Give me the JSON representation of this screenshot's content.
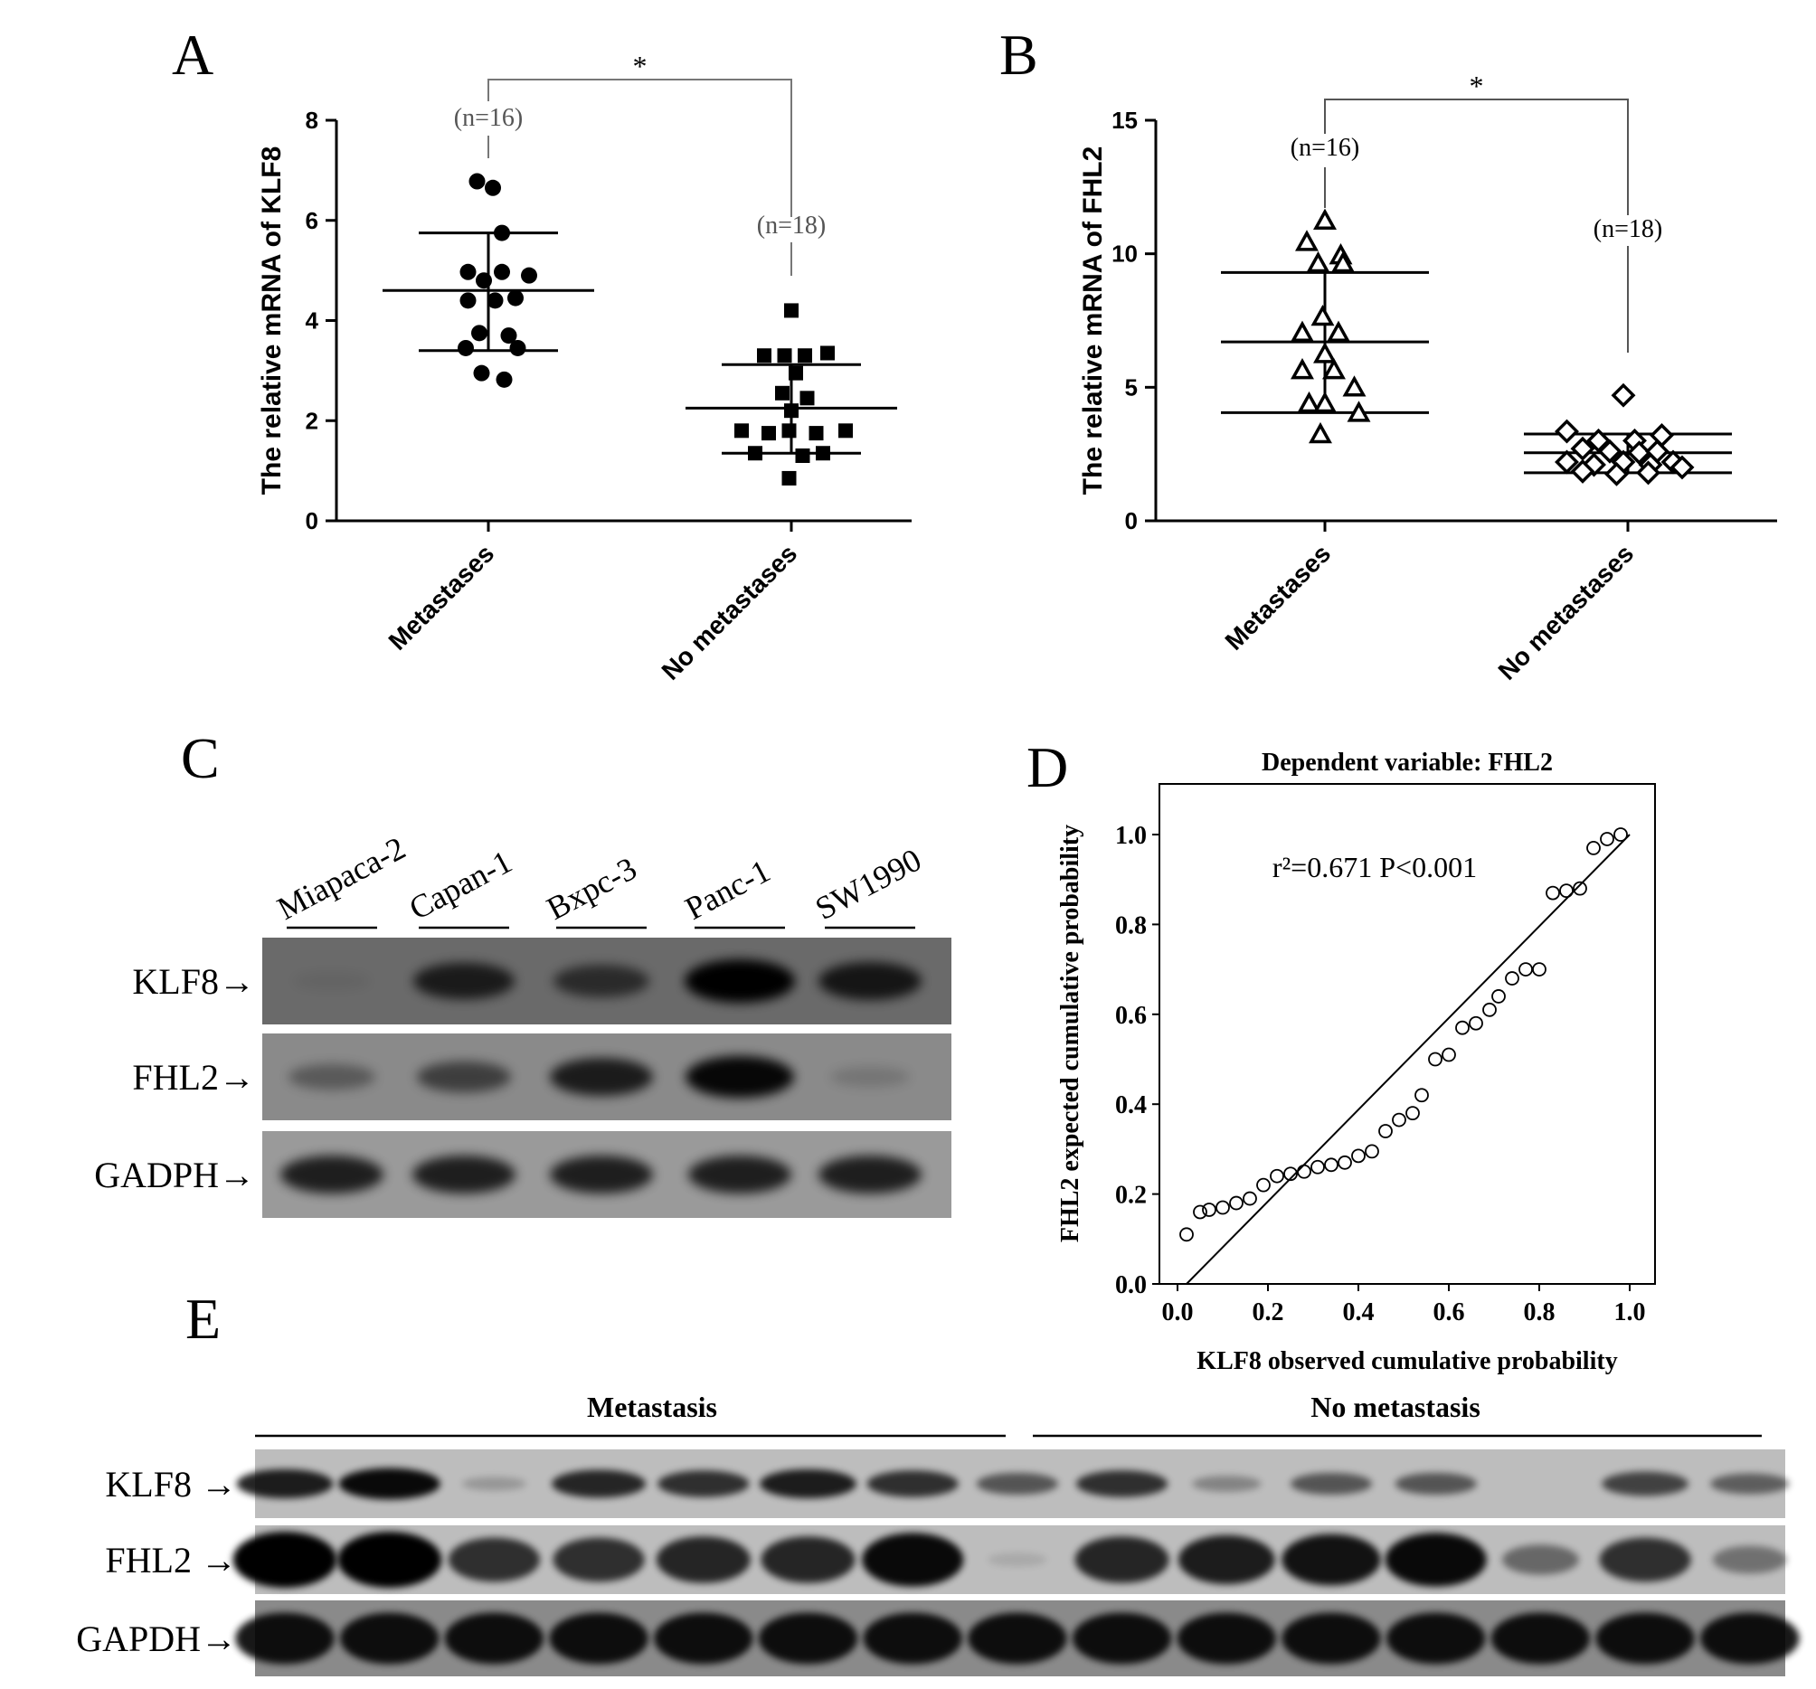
{
  "panels": {
    "A": {
      "letter": "A"
    },
    "B": {
      "letter": "B"
    },
    "C": {
      "letter": "C"
    },
    "D": {
      "letter": "D"
    },
    "E": {
      "letter": "E"
    }
  },
  "chart_data": [
    {
      "id": "A",
      "type": "scatter",
      "ylabel": "The relative mRNA of KLF8",
      "categories": [
        "Metastases",
        "No metastases"
      ],
      "ylim": [
        0,
        8
      ],
      "yticks": [
        0,
        2,
        4,
        6,
        8
      ],
      "significance": "*",
      "series": [
        {
          "name": "Metastases",
          "n_label": "(n=16)",
          "marker": "circle",
          "mean": 4.6,
          "sd_upper": 5.75,
          "sd_lower": 3.4,
          "points": [
            [
              -0.05,
              6.78
            ],
            [
              0.02,
              6.65
            ],
            [
              0.06,
              5.75
            ],
            [
              -0.09,
              4.97
            ],
            [
              0.06,
              4.97
            ],
            [
              0.18,
              4.9
            ],
            [
              -0.02,
              4.8
            ],
            [
              -0.09,
              4.4
            ],
            [
              0.03,
              4.4
            ],
            [
              0.12,
              4.45
            ],
            [
              -0.04,
              3.75
            ],
            [
              0.09,
              3.7
            ],
            [
              -0.1,
              3.45
            ],
            [
              0.13,
              3.45
            ],
            [
              -0.03,
              2.95
            ],
            [
              0.07,
              2.82
            ]
          ]
        },
        {
          "name": "No metastases",
          "n_label": "(n=18)",
          "marker": "square",
          "mean": 2.25,
          "sd_upper": 3.12,
          "sd_lower": 1.35,
          "points": [
            [
              0.0,
              4.2
            ],
            [
              -0.12,
              3.3
            ],
            [
              -0.03,
              3.3
            ],
            [
              0.06,
              3.3
            ],
            [
              0.16,
              3.35
            ],
            [
              0.02,
              2.95
            ],
            [
              -0.04,
              2.55
            ],
            [
              0.07,
              2.45
            ],
            [
              0.0,
              2.2
            ],
            [
              -0.22,
              1.8
            ],
            [
              -0.1,
              1.75
            ],
            [
              -0.01,
              1.8
            ],
            [
              0.11,
              1.75
            ],
            [
              0.24,
              1.8
            ],
            [
              -0.16,
              1.35
            ],
            [
              0.05,
              1.3
            ],
            [
              0.14,
              1.35
            ],
            [
              -0.01,
              0.85
            ]
          ]
        }
      ]
    },
    {
      "id": "B",
      "type": "scatter",
      "ylabel": "The relative mRNA of FHL2",
      "categories": [
        "Metastases",
        "No metastases"
      ],
      "ylim": [
        0,
        15
      ],
      "yticks": [
        0,
        5,
        10,
        15
      ],
      "significance": "*",
      "series": [
        {
          "name": "Metastases",
          "n_label": "(n=16)",
          "marker": "triangle",
          "mean": 6.7,
          "sd_upper": 9.3,
          "sd_lower": 4.05,
          "points": [
            [
              0.0,
              11.2
            ],
            [
              -0.08,
              10.4
            ],
            [
              0.07,
              9.9
            ],
            [
              -0.03,
              9.6
            ],
            [
              0.08,
              9.6
            ],
            [
              -0.01,
              7.6
            ],
            [
              -0.1,
              7.0
            ],
            [
              0.06,
              7.0
            ],
            [
              0.0,
              6.2
            ],
            [
              -0.1,
              5.6
            ],
            [
              0.04,
              5.6
            ],
            [
              0.13,
              4.95
            ],
            [
              -0.07,
              4.35
            ],
            [
              0.0,
              4.35
            ],
            [
              0.15,
              4.0
            ],
            [
              -0.02,
              3.2
            ]
          ]
        },
        {
          "name": "No metastases",
          "n_label": "(n=18)",
          "marker": "diamond",
          "mean": 2.55,
          "sd_upper": 3.25,
          "sd_lower": 1.8,
          "points": [
            [
              -0.02,
              4.7
            ],
            [
              -0.27,
              3.35
            ],
            [
              -0.13,
              3.0
            ],
            [
              0.03,
              3.0
            ],
            [
              0.15,
              3.2
            ],
            [
              -0.2,
              2.7
            ],
            [
              -0.08,
              2.6
            ],
            [
              0.05,
              2.55
            ],
            [
              0.13,
              2.6
            ],
            [
              -0.27,
              2.2
            ],
            [
              -0.15,
              2.1
            ],
            [
              -0.02,
              2.2
            ],
            [
              0.1,
              2.1
            ],
            [
              0.2,
              2.2
            ],
            [
              -0.2,
              1.85
            ],
            [
              -0.05,
              1.75
            ],
            [
              0.09,
              1.8
            ],
            [
              0.24,
              2.0
            ]
          ]
        }
      ]
    },
    {
      "id": "D",
      "type": "scatter",
      "title": "Dependent variable: FHL2",
      "xlabel": "KLF8 observed cumulative probability",
      "ylabel": "FHL2 expected cumulative probability",
      "annotation": "r²=0.671 P<0.001",
      "xlim": [
        0,
        1.0
      ],
      "ylim": [
        0,
        1.0
      ],
      "xticks": [
        "0.0",
        "0.2",
        "0.4",
        "0.6",
        "0.8",
        "1.0"
      ],
      "yticks": [
        "0.0",
        "0.2",
        "0.4",
        "0.6",
        "0.8",
        "1.0"
      ],
      "reference_line": [
        [
          0.02,
          0.0
        ],
        [
          1.0,
          1.0
        ]
      ],
      "points": [
        [
          0.02,
          0.11
        ],
        [
          0.05,
          0.16
        ],
        [
          0.07,
          0.165
        ],
        [
          0.1,
          0.17
        ],
        [
          0.13,
          0.18
        ],
        [
          0.16,
          0.19
        ],
        [
          0.19,
          0.22
        ],
        [
          0.22,
          0.24
        ],
        [
          0.25,
          0.245
        ],
        [
          0.28,
          0.25
        ],
        [
          0.31,
          0.26
        ],
        [
          0.34,
          0.265
        ],
        [
          0.37,
          0.27
        ],
        [
          0.4,
          0.285
        ],
        [
          0.43,
          0.295
        ],
        [
          0.46,
          0.34
        ],
        [
          0.49,
          0.365
        ],
        [
          0.52,
          0.38
        ],
        [
          0.54,
          0.42
        ],
        [
          0.57,
          0.5
        ],
        [
          0.6,
          0.51
        ],
        [
          0.63,
          0.57
        ],
        [
          0.66,
          0.58
        ],
        [
          0.69,
          0.61
        ],
        [
          0.71,
          0.64
        ],
        [
          0.74,
          0.68
        ],
        [
          0.77,
          0.7
        ],
        [
          0.8,
          0.7
        ],
        [
          0.83,
          0.87
        ],
        [
          0.86,
          0.875
        ],
        [
          0.89,
          0.88
        ],
        [
          0.92,
          0.97
        ],
        [
          0.95,
          0.99
        ],
        [
          0.98,
          1.0
        ]
      ]
    }
  ],
  "blot_c": {
    "lanes": [
      "Miapaca-2",
      "Capan-1",
      "Bxpc-3",
      "Panc-1",
      "SW1990"
    ],
    "rows": [
      {
        "label": "KLF8→",
        "intensities": [
          0.05,
          0.75,
          0.6,
          1.0,
          0.8
        ]
      },
      {
        "label": "FHL2→",
        "intensities": [
          0.35,
          0.55,
          0.8,
          0.95,
          0.15
        ]
      },
      {
        "label": "GADPH→",
        "intensities": [
          0.8,
          0.8,
          0.8,
          0.8,
          0.8
        ]
      }
    ]
  },
  "blot_e": {
    "group_metastasis": "Metastasis",
    "group_no_metastasis": "No metastasis",
    "rows": [
      {
        "label": "KLF8 →",
        "intensities": [
          0.85,
          0.95,
          0.2,
          0.8,
          0.75,
          0.85,
          0.75,
          0.55,
          0.75,
          0.3,
          0.55,
          0.55,
          0.0,
          0.65,
          0.5
        ]
      },
      {
        "label": "FHL2 →",
        "intensities": [
          1.0,
          1.0,
          0.75,
          0.75,
          0.8,
          0.8,
          0.95,
          0.1,
          0.8,
          0.85,
          0.9,
          0.95,
          0.45,
          0.75,
          0.4
        ]
      },
      {
        "label": "GAPDH→",
        "intensities": [
          0.9,
          0.9,
          0.9,
          0.9,
          0.9,
          0.9,
          0.9,
          0.9,
          0.9,
          0.9,
          0.9,
          0.9,
          0.9,
          0.9,
          0.9
        ]
      }
    ]
  }
}
